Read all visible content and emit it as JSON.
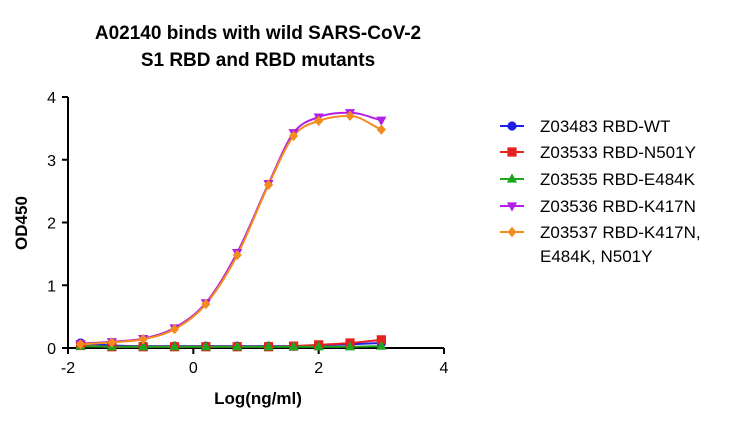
{
  "chart_data": {
    "type": "scatter",
    "title_lines": [
      "A02140 binds with wild SARS-CoV-2",
      "S1 RBD and RBD mutants"
    ],
    "xlabel": "Log(ng/ml)",
    "ylabel": "OD450",
    "xlim": [
      -2,
      4
    ],
    "ylim": [
      0,
      4
    ],
    "xticks": [
      -2,
      0,
      2,
      4
    ],
    "yticks": [
      0,
      1,
      2,
      3,
      4
    ],
    "fit": "sigmoidal curve through each series",
    "grid": false,
    "legend_position": "right",
    "x": [
      -1.8,
      -1.3,
      -0.8,
      -0.3,
      0.2,
      0.7,
      1.2,
      1.6,
      2.0,
      2.5,
      3.0
    ],
    "series": [
      {
        "name": "Z03483 RBD-WT",
        "color": "#1f1fe6",
        "marker": "circle",
        "values": [
          0.08,
          0.04,
          0.03,
          0.03,
          0.03,
          0.03,
          0.03,
          0.03,
          0.04,
          0.06,
          0.08
        ]
      },
      {
        "name": "Z03533 RBD-N501Y",
        "color": "#e61f1f",
        "marker": "square",
        "values": [
          0.04,
          0.02,
          0.02,
          0.02,
          0.02,
          0.02,
          0.02,
          0.03,
          0.05,
          0.08,
          0.13
        ]
      },
      {
        "name": "Z03535 RBD-E484K",
        "color": "#1fa61f",
        "marker": "triangle-up",
        "values": [
          0.03,
          0.02,
          0.02,
          0.02,
          0.02,
          0.02,
          0.02,
          0.02,
          0.02,
          0.02,
          0.03
        ]
      },
      {
        "name": "Z03536 RBD-K417N",
        "color": "#b21fe6",
        "marker": "triangle-down",
        "values": [
          0.07,
          0.1,
          0.15,
          0.32,
          0.72,
          1.52,
          2.62,
          3.43,
          3.68,
          3.75,
          3.63
        ]
      },
      {
        "name_lines": [
          "Z03537 RBD-K417N,",
          "E484K, N501Y"
        ],
        "color": "#f28c1f",
        "marker": "diamond",
        "values": [
          0.06,
          0.09,
          0.14,
          0.3,
          0.7,
          1.48,
          2.6,
          3.38,
          3.62,
          3.7,
          3.48
        ]
      }
    ]
  }
}
